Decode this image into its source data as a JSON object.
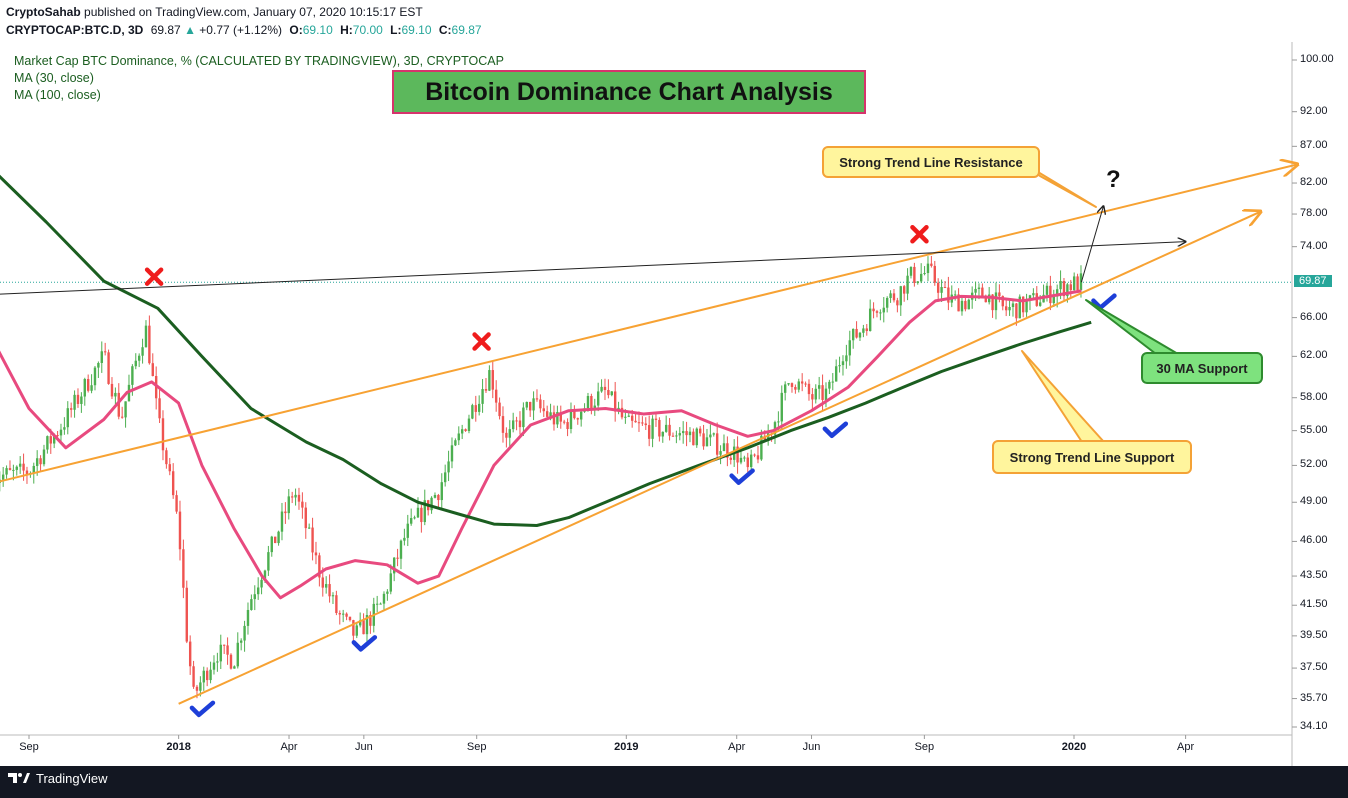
{
  "header": {
    "user": "CryptoSahab",
    "published_text": "published on TradingView.com, January 07, 2020 10:15:17 EST",
    "symbol": "CRYPTOCAP:BTC.D, 3D",
    "last": "69.87",
    "change": "+0.77 (+1.12%)",
    "o_label": "O:",
    "o_value": "69.10",
    "h_label": "H:",
    "h_value": "70.00",
    "l_label": "L:",
    "l_value": "69.10",
    "c_label": "C:",
    "c_value": "69.87"
  },
  "legend": {
    "series_title": "Market Cap BTC Dominance, % (CALCULATED BY TRADINGVIEW), 3D, CRYPTOCAP",
    "ma30": "MA (30, close)",
    "ma100": "MA (100, close)"
  },
  "colors": {
    "up": "#26a69a",
    "candle_up": "#4caf50",
    "candle_down": "#ef5350",
    "ma30": "#e84a7f",
    "ma100": "#1b5e20",
    "trend": "#f7a233",
    "resistance_flat": "#222222",
    "check": "#1e3fd8",
    "cross": "#ef1c1c"
  },
  "chart_data": {
    "type": "candlestick",
    "title": "Bitcoin Dominance Chart Analysis",
    "y_scale": "log",
    "ylim": [
      34.1,
      100
    ],
    "y_ticks": [
      "100.00",
      "92.00",
      "87.00",
      "82.00",
      "78.00",
      "74.00",
      "69.87",
      "66.00",
      "62.00",
      "58.00",
      "55.00",
      "52.00",
      "49.00",
      "46.00",
      "43.50",
      "41.50",
      "39.50",
      "37.50",
      "35.70",
      "34.10"
    ],
    "last_price": "69.87",
    "x_ticks": [
      {
        "label": "Sep",
        "date": "2017-09-01"
      },
      {
        "label": "2018",
        "date": "2018-01-01",
        "bold": true
      },
      {
        "label": "Apr",
        "date": "2018-04-01"
      },
      {
        "label": "Jun",
        "date": "2018-06-01"
      },
      {
        "label": "Sep",
        "date": "2018-09-01"
      },
      {
        "label": "2019",
        "date": "2019-01-01",
        "bold": true
      },
      {
        "label": "Apr",
        "date": "2019-04-01"
      },
      {
        "label": "Jun",
        "date": "2019-06-01"
      },
      {
        "label": "Sep",
        "date": "2019-09-01"
      },
      {
        "label": "2020",
        "date": "2020-01-01",
        "bold": true
      },
      {
        "label": "Apr",
        "date": "2020-04-01"
      }
    ],
    "close_path": [
      [
        "2017-08-01",
        51.0
      ],
      [
        "2017-09-01",
        51.5
      ],
      [
        "2017-10-01",
        56.0
      ],
      [
        "2017-11-01",
        62.0
      ],
      [
        "2017-11-15",
        56.0
      ],
      [
        "2017-12-05",
        65.0
      ],
      [
        "2017-12-15",
        56.0
      ],
      [
        "2018-01-01",
        47.0
      ],
      [
        "2018-01-07",
        40.0
      ],
      [
        "2018-01-13",
        35.8
      ],
      [
        "2018-02-01",
        38.5
      ],
      [
        "2018-02-15",
        38.0
      ],
      [
        "2018-03-01",
        42.0
      ],
      [
        "2018-03-20",
        46.0
      ],
      [
        "2018-04-05",
        50.0
      ],
      [
        "2018-04-25",
        44.0
      ],
      [
        "2018-05-10",
        41.0
      ],
      [
        "2018-05-25",
        39.5
      ],
      [
        "2018-06-15",
        41.5
      ],
      [
        "2018-07-05",
        46.5
      ],
      [
        "2018-08-01",
        50.0
      ],
      [
        "2018-08-20",
        55.0
      ],
      [
        "2018-09-12",
        60.5
      ],
      [
        "2018-09-25",
        54.0
      ],
      [
        "2018-10-15",
        57.5
      ],
      [
        "2018-11-10",
        55.5
      ],
      [
        "2018-12-01",
        57.5
      ],
      [
        "2018-12-15",
        58.5
      ],
      [
        "2019-01-01",
        55.5
      ],
      [
        "2019-02-01",
        55.0
      ],
      [
        "2019-03-01",
        54.5
      ],
      [
        "2019-04-01",
        53.0
      ],
      [
        "2019-04-10",
        51.5
      ],
      [
        "2019-05-01",
        55.5
      ],
      [
        "2019-05-15",
        60.0
      ],
      [
        "2019-06-01",
        58.0
      ],
      [
        "2019-06-15",
        58.5
      ],
      [
        "2019-06-28",
        63.0
      ],
      [
        "2019-07-10",
        64.5
      ],
      [
        "2019-07-25",
        67.5
      ],
      [
        "2019-08-10",
        68.5
      ],
      [
        "2019-08-20",
        70.5
      ],
      [
        "2019-09-05",
        71.0
      ],
      [
        "2019-09-20",
        68.0
      ],
      [
        "2019-10-05",
        67.7
      ],
      [
        "2019-10-20",
        68.8
      ],
      [
        "2019-11-05",
        66.8
      ],
      [
        "2019-11-20",
        67.2
      ],
      [
        "2019-12-10",
        68.5
      ],
      [
        "2019-12-25",
        69.5
      ],
      [
        "2020-01-07",
        69.87
      ]
    ],
    "ma30_path": [
      [
        "2017-08-01",
        64.0
      ],
      [
        "2017-09-01",
        57.0
      ],
      [
        "2017-10-01",
        53.5
      ],
      [
        "2017-11-01",
        56.0
      ],
      [
        "2017-11-20",
        58.5
      ],
      [
        "2017-12-10",
        59.5
      ],
      [
        "2018-01-01",
        57.5
      ],
      [
        "2018-01-20",
        52.0
      ],
      [
        "2018-02-15",
        47.0
      ],
      [
        "2018-03-10",
        43.5
      ],
      [
        "2018-03-25",
        42.0
      ],
      [
        "2018-04-10",
        42.8
      ],
      [
        "2018-05-01",
        44.0
      ],
      [
        "2018-05-25",
        44.6
      ],
      [
        "2018-06-20",
        44.3
      ],
      [
        "2018-07-15",
        43.0
      ],
      [
        "2018-08-01",
        43.5
      ],
      [
        "2018-08-20",
        47.0
      ],
      [
        "2018-09-15",
        52.0
      ],
      [
        "2018-10-15",
        55.5
      ],
      [
        "2018-11-15",
        56.8
      ],
      [
        "2018-12-15",
        57.0
      ],
      [
        "2019-01-15",
        56.5
      ],
      [
        "2019-02-15",
        56.8
      ],
      [
        "2019-03-15",
        55.5
      ],
      [
        "2019-04-10",
        54.5
      ],
      [
        "2019-05-01",
        55.0
      ],
      [
        "2019-06-01",
        56.8
      ],
      [
        "2019-07-01",
        59.0
      ],
      [
        "2019-07-25",
        62.0
      ],
      [
        "2019-08-20",
        65.5
      ],
      [
        "2019-09-10",
        67.8
      ],
      [
        "2019-10-01",
        68.3
      ],
      [
        "2019-10-25",
        68.2
      ],
      [
        "2019-11-20",
        67.8
      ],
      [
        "2019-12-20",
        68.5
      ],
      [
        "2020-01-07",
        68.9
      ]
    ],
    "ma100_path": [
      [
        "2017-08-01",
        84.0
      ],
      [
        "2017-09-15",
        77.0
      ],
      [
        "2017-11-01",
        70.0
      ],
      [
        "2017-12-15",
        67.0
      ],
      [
        "2018-01-20",
        62.0
      ],
      [
        "2018-03-01",
        57.0
      ],
      [
        "2018-04-15",
        54.0
      ],
      [
        "2018-05-15",
        52.5
      ],
      [
        "2018-06-15",
        50.5
      ],
      [
        "2018-07-15",
        49.0
      ],
      [
        "2018-08-20",
        48.0
      ],
      [
        "2018-09-15",
        47.3
      ],
      [
        "2018-10-20",
        47.2
      ],
      [
        "2018-11-15",
        47.8
      ],
      [
        "2018-12-15",
        49.0
      ],
      [
        "2019-01-20",
        50.5
      ],
      [
        "2019-03-01",
        52.0
      ],
      [
        "2019-04-10",
        53.5
      ],
      [
        "2019-05-15",
        55.0
      ],
      [
        "2019-06-15",
        56.2
      ],
      [
        "2019-07-15",
        57.5
      ],
      [
        "2019-08-15",
        59.0
      ],
      [
        "2019-09-15",
        60.5
      ],
      [
        "2019-10-20",
        62.0
      ],
      [
        "2019-11-20",
        63.3
      ],
      [
        "2019-12-20",
        64.5
      ],
      [
        "2020-01-15",
        65.5
      ]
    ],
    "trend_lines": [
      {
        "name": "Strong Trend Line Resistance",
        "from": [
          "2017-08-01",
          50.5
        ],
        "to": [
          "2020-07-01",
          84.5
        ],
        "style": "orange-arrow"
      },
      {
        "name": "Strong Trend Line Support",
        "from": [
          "2018-01-01",
          35.4
        ],
        "to": [
          "2020-06-01",
          78.3
        ],
        "style": "orange-arrow"
      },
      {
        "name": "horizontal-resistance",
        "from": [
          "2017-08-01",
          68.5
        ],
        "to": [
          "2020-04-01",
          74.6
        ],
        "style": "black-arrow"
      },
      {
        "name": "breakout-projection",
        "from": [
          "2020-01-07",
          69.87
        ],
        "to": [
          "2020-01-25",
          79.0
        ],
        "style": "black-arrow"
      }
    ],
    "markers": [
      {
        "type": "cross",
        "date": "2017-12-12",
        "value": 70.5
      },
      {
        "type": "cross",
        "date": "2018-09-05",
        "value": 63.5
      },
      {
        "type": "cross",
        "date": "2019-08-28",
        "value": 75.5
      },
      {
        "type": "check",
        "date": "2018-01-20",
        "value": 35.0
      },
      {
        "type": "check",
        "date": "2018-06-01",
        "value": 38.9
      },
      {
        "type": "check",
        "date": "2019-04-05",
        "value": 50.9
      },
      {
        "type": "check",
        "date": "2019-06-20",
        "value": 54.9
      },
      {
        "type": "check",
        "date": "2020-01-25",
        "value": 67.5
      }
    ],
    "annotations": {
      "resistance": "Strong Trend Line Resistance",
      "support": "Strong Trend Line Support",
      "ma_support": "30 MA Support",
      "question": "?"
    }
  },
  "footer": {
    "brand": "TradingView",
    "logo_icon": "tradingview-logo-icon"
  }
}
